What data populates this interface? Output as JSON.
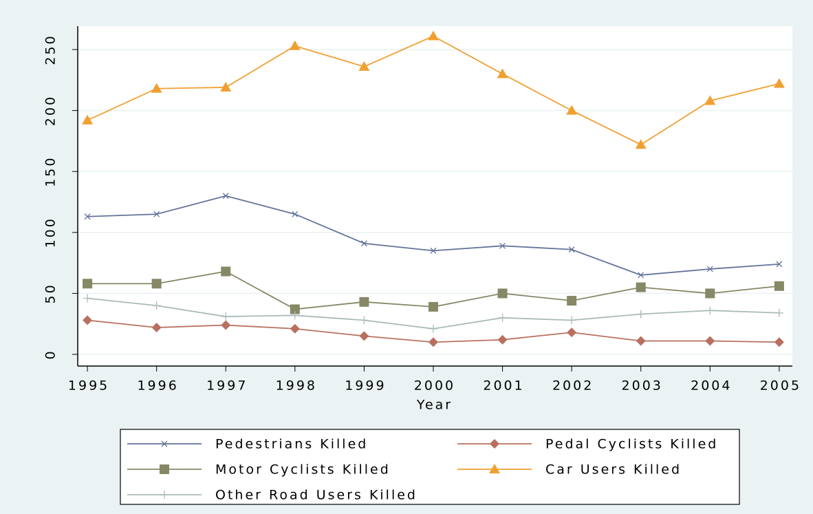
{
  "chart_data": {
    "type": "line",
    "x_label": "Year",
    "x": [
      1995,
      1996,
      1997,
      1998,
      1999,
      2000,
      2001,
      2002,
      2003,
      2004,
      2005
    ],
    "xlim": [
      1994.86,
      2005.19
    ],
    "xticks": [
      1995,
      1996,
      1997,
      1998,
      1999,
      2000,
      2001,
      2002,
      2003,
      2004,
      2005
    ],
    "ylim": [
      -9.6,
      269.2
    ],
    "yticks": [
      0,
      50,
      100,
      150,
      200,
      250
    ],
    "grid": true,
    "legend_position": "bottom",
    "series": [
      {
        "name": "Pedestrians Killed",
        "color": "#63739a",
        "marker": "x",
        "values": [
          113,
          115,
          130,
          115,
          91,
          85,
          89,
          86,
          65,
          70,
          74
        ]
      },
      {
        "name": "Pedal Cyclists Killed",
        "color": "#b8705f",
        "marker": "diamond",
        "values": [
          28,
          22,
          24,
          21,
          15,
          10,
          12,
          18,
          11,
          11,
          10
        ]
      },
      {
        "name": "Motor Cyclists Killed",
        "color": "#868866",
        "marker": "square",
        "values": [
          58,
          58,
          68,
          37,
          43,
          39,
          50,
          44,
          55,
          50,
          56
        ]
      },
      {
        "name": "Car Users Killed",
        "color": "#f0a030",
        "marker": "triangle",
        "values": [
          192,
          218,
          219,
          253,
          236,
          261,
          230,
          200,
          172,
          208,
          222
        ]
      },
      {
        "name": "Other Road Users Killed",
        "color": "#a9baba",
        "marker": "plus",
        "values": [
          46,
          40,
          31,
          32,
          28,
          21,
          30,
          28,
          33,
          36,
          34
        ]
      }
    ]
  }
}
